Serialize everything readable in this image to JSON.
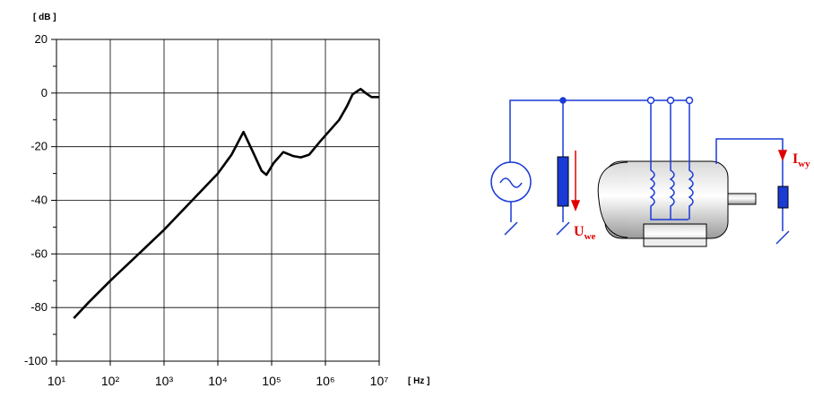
{
  "chart_data": {
    "type": "line",
    "ylabel": "[ dB ]",
    "xlabel": "[ Hz ]",
    "x": [
      21,
      40,
      100,
      300,
      1000,
      3000,
      10000,
      18000,
      30000,
      45000,
      65000,
      80000,
      110000,
      165000,
      250000,
      350000,
      500000,
      800000,
      1200000,
      1800000,
      2500000,
      3200000,
      4500000,
      5600000,
      7200000,
      10000000
    ],
    "values": [
      -84,
      -78,
      -70,
      -61,
      -51,
      -41,
      -30,
      -23,
      -14.5,
      -22,
      -29,
      -30.5,
      -26,
      -22,
      -23.5,
      -24,
      -23,
      -18,
      -14,
      -10,
      -5,
      -0.5,
      1.5,
      0,
      -1.5,
      -1.5
    ],
    "color": "#000000",
    "log_x": true,
    "xlim": [
      10,
      10000000
    ],
    "ylim": [
      -100,
      20
    ],
    "xticks": [
      {
        "value": 10,
        "label": "10¹"
      },
      {
        "value": 100,
        "label": "10²"
      },
      {
        "value": 1000,
        "label": "10³"
      },
      {
        "value": 10000,
        "label": "10⁴"
      },
      {
        "value": 100000,
        "label": "10⁵"
      },
      {
        "value": 1000000,
        "label": "10⁶"
      },
      {
        "value": 10000000,
        "label": "10⁷"
      }
    ],
    "yticks": [
      -100,
      -80,
      -60,
      -40,
      -20,
      0,
      20
    ],
    "yminorticks": [
      -90,
      -70,
      -50,
      -30,
      -10,
      10
    ],
    "grid": true
  },
  "diagram": {
    "labels": [
      {
        "main": "U",
        "sub": "we"
      },
      {
        "main": "I",
        "sub": "wy"
      }
    ]
  }
}
